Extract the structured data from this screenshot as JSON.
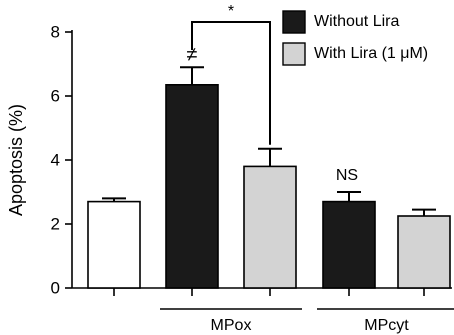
{
  "chart_data": {
    "type": "bar",
    "ylabel": "Apoptosis (%)",
    "ylim": [
      0,
      8
    ],
    "yticks": [
      0,
      2,
      4,
      6,
      8
    ],
    "bars": [
      {
        "value": 2.7,
        "error": 0.1,
        "fill": "#ffffff"
      },
      {
        "value": 6.35,
        "error": 0.55,
        "fill": "#1a1a1a"
      },
      {
        "value": 3.8,
        "error": 0.55,
        "fill": "#d3d3d3"
      },
      {
        "value": 2.7,
        "error": 0.3,
        "fill": "#1a1a1a"
      },
      {
        "value": 2.25,
        "error": 0.2,
        "fill": "#d3d3d3"
      }
    ],
    "legend": [
      {
        "label": "Without Lira",
        "fill": "#1a1a1a"
      },
      {
        "label": "With Lira (1 μM)",
        "fill": "#d3d3d3"
      }
    ],
    "groups": [
      {
        "label": "MPox",
        "bars": [
          1,
          2
        ]
      },
      {
        "label": "MPcyt",
        "bars": [
          3,
          4
        ]
      }
    ],
    "annotations": {
      "bar1": "≠",
      "bar3": "NS",
      "bracket": "*"
    }
  }
}
